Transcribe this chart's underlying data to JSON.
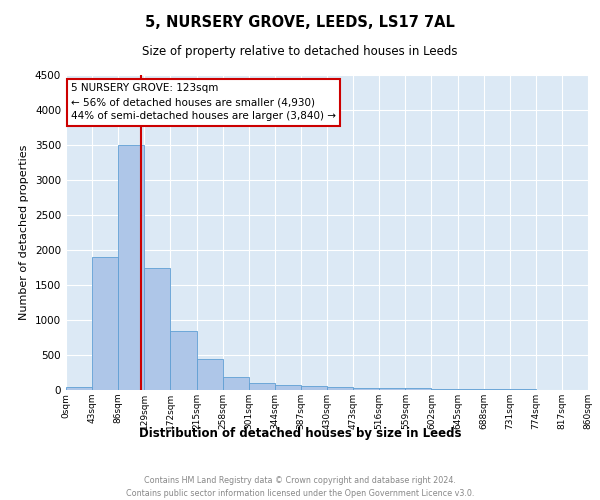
{
  "title": "5, NURSERY GROVE, LEEDS, LS17 7AL",
  "subtitle": "Size of property relative to detached houses in Leeds",
  "xlabel": "Distribution of detached houses by size in Leeds",
  "ylabel": "Number of detached properties",
  "property_label": "5 NURSERY GROVE: 123sqm",
  "annotation_line1": "← 56% of detached houses are smaller (4,930)",
  "annotation_line2": "44% of semi-detached houses are larger (3,840) →",
  "bin_edges": [
    0,
    43,
    86,
    129,
    172,
    215,
    258,
    301,
    344,
    387,
    430,
    473,
    516,
    559,
    602,
    645,
    688,
    731,
    774,
    817,
    860
  ],
  "bar_heights": [
    50,
    1900,
    3500,
    1750,
    850,
    450,
    180,
    100,
    70,
    60,
    50,
    35,
    30,
    25,
    20,
    15,
    10,
    8,
    5,
    5
  ],
  "bar_color": "#aec6e8",
  "bar_edge_color": "#5f9fd4",
  "vline_color": "#cc0000",
  "vline_x": 123,
  "ylim": [
    0,
    4500
  ],
  "xlim": [
    0,
    860
  ],
  "yticks": [
    0,
    500,
    1000,
    1500,
    2000,
    2500,
    3000,
    3500,
    4000,
    4500
  ],
  "xtick_labels": [
    "0sqm",
    "43sqm",
    "86sqm",
    "129sqm",
    "172sqm",
    "215sqm",
    "258sqm",
    "301sqm",
    "344sqm",
    "387sqm",
    "430sqm",
    "473sqm",
    "516sqm",
    "559sqm",
    "602sqm",
    "645sqm",
    "688sqm",
    "731sqm",
    "774sqm",
    "817sqm",
    "860sqm"
  ],
  "grid_color": "#ffffff",
  "bg_color": "#dce9f5",
  "footer_line1": "Contains HM Land Registry data © Crown copyright and database right 2024.",
  "footer_line2": "Contains public sector information licensed under the Open Government Licence v3.0."
}
